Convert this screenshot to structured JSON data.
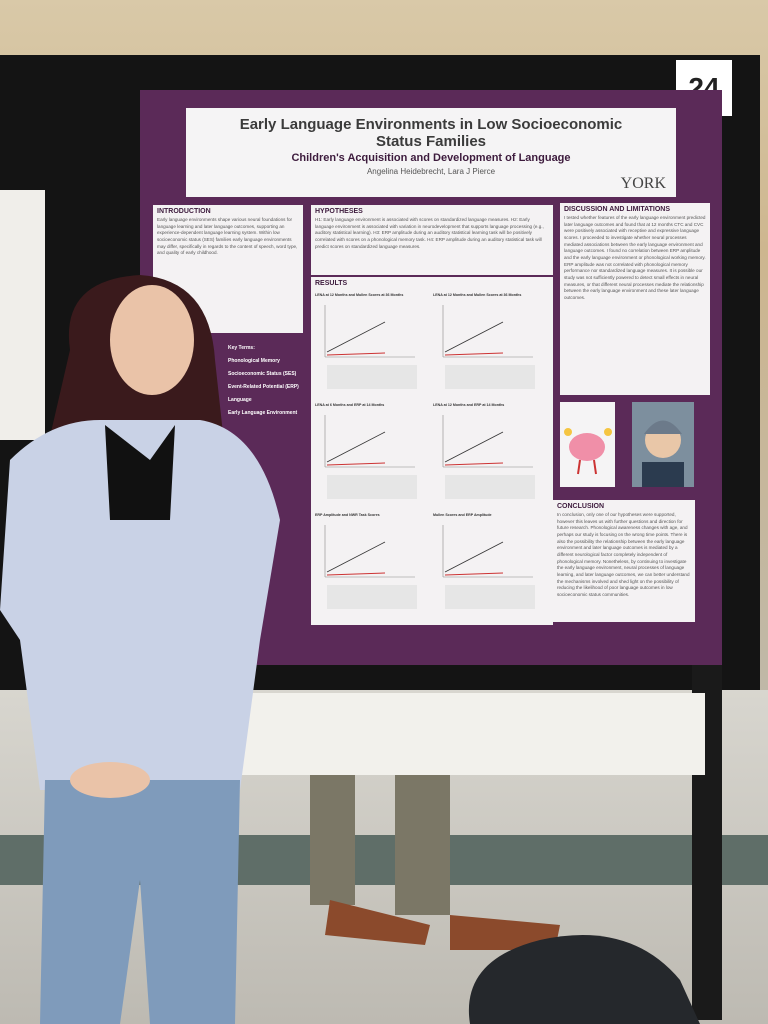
{
  "poster_number": "24",
  "poster": {
    "title": "Early Language Environments in Low Socioeconomic Status Families",
    "subtitle": "Children's Acquisition and Development of Language",
    "authors": "Angelina Heidebrecht, Lara J Pierce",
    "logo": "YORK",
    "sections": [
      {
        "heading": "INTRODUCTION",
        "text": "Early language environments shape various neural foundations for language learning and later language outcomes, supporting an experience-dependent language learning system. Within low socioeconomic status (SES) families early language environments may differ, specifically in regards to the content of speech, word type, and quality of early childhood."
      },
      {
        "heading": "HYPOTHESES",
        "text": "H1: Early language environment is associated with scores on standardized language measures. H2: Early language environment is associated with variation in neurodevelopment that supports language processing (e.g., auditory statistical learning). H3: ERP amplitude during an auditory statistical learning task will be positively correlated with scores on a phonological memory task. H4: ERP amplitude during an auditory statistical task will predict scores on standardized language measures."
      },
      {
        "heading": "RESULTS"
      },
      {
        "heading": "DISCUSSION AND LIMITATIONS",
        "text": "I tested whether features of the early language environment predicted later language outcomes and found that at 12 months CTC and CVC were positively associated with receptive and expressive language scores. I proceeded to investigate whether neural processes mediated associations between the early language environment and language outcomes. I found no correlation between ERP amplitude and the early language environment or phonological working memory. ERP amplitude was not correlated with phonological memory performance nor standardized language measures. It is possible our study was not sufficiently powered to detect small effects in neural measures, or that different neural processes mediate the relationship between the early language environment and these later language outcomes."
      },
      {
        "heading": "CONCLUSION",
        "text": "In conclusion, only one of our hypotheses were supported, however this leaves us with further questions and direction for future research. Phonological awareness changes with age, and perhaps our study is focusing on the wrong time points. There is also the possibility the relationship between the early language environment and later language outcomes is mediated by a different neurological factor completely independent of phonological memory. Nonetheless, by continuing to investigate the early language environment, neural processes of language learning, and later language outcomes, we can better understand the mechanisms involved and shed light on the possibility of reducing the likelihood of poor language outcomes in low socioeconomic status communities."
      }
    ],
    "key_terms_heading": "Key Terms:",
    "key_terms": [
      "Phonological Memory",
      "Socioeconomic Status (SES)",
      "Event-Related Potential (ERP)",
      "Language",
      "Early Language Environment"
    ],
    "chart_titles": [
      "LENA at 12 Months and Mullen Scores at 36 Months",
      "LENA at 12 Months and Mullen Scores at 36 Months",
      "LENA at 6 Months and ERP at 14 Months",
      "LENA at 12 Months and ERP at 14 Months",
      "ERP Amplitude and NWR Task Scores",
      "Mullen Scores and ERP Amplitude"
    ]
  }
}
